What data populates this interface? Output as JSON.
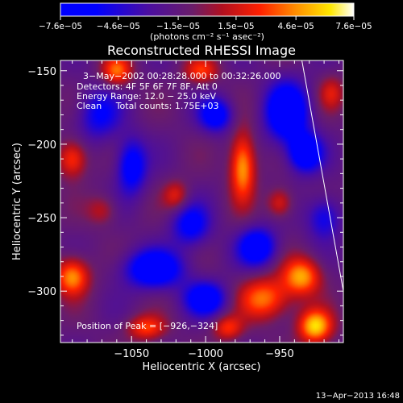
{
  "chart_data": {
    "type": "heatmap",
    "title": "Reconstructed RHESSI Image",
    "xlabel": "Heliocentric X (arcsec)",
    "ylabel": "Heliocentric Y (arcsec)",
    "xlim": [
      -1098,
      -907
    ],
    "ylim": [
      -335,
      -143
    ],
    "xticks": [
      -1050,
      -1000,
      -950
    ],
    "xtick_labels": [
      "−1050",
      "−1000",
      "−950"
    ],
    "yticks": [
      -150,
      -200,
      -250,
      -300
    ],
    "ytick_labels": [
      "−150",
      "−200",
      "−250",
      "−300"
    ],
    "colorbar": {
      "min": -7.6e-05,
      "max": 7.6e-05,
      "ticks": [
        -7.6e-05,
        -4.6e-05,
        -1.5e-05,
        1.5e-05,
        4.6e-05,
        7.6e-05
      ],
      "tick_labels": [
        "−7.6e−05",
        "−4.6e−05",
        "−1.5e−05",
        "1.5e−05",
        "4.6e−05",
        "7.6e−05"
      ],
      "units_label": "(photons cm⁻² s⁻¹ asec⁻²)"
    },
    "annotations": {
      "time_range": "3−May−2002 00:28:28.000 to 00:32:26.000",
      "detectors": "Detectors: 4F 5F 6F 7F 8F, Att 0",
      "energy": "Energy Range: 12.0 − 25.0 keV",
      "clean": "Clean     Total counts: 1.75E+03",
      "peak": "Position of Peak = [−926,−324]"
    },
    "limb_line": {
      "x": [
        -935,
        -907
      ],
      "y": [
        -143,
        -300
      ]
    },
    "blobs": [
      {
        "x": -945,
        "y": -178,
        "amp": -1,
        "sx": 10,
        "sy": 14
      },
      {
        "x": -933,
        "y": -206,
        "amp": -0.9,
        "sx": 8,
        "sy": 9
      },
      {
        "x": -965,
        "y": -270,
        "amp": -0.85,
        "sx": 9,
        "sy": 9
      },
      {
        "x": -1050,
        "y": -215,
        "amp": -0.75,
        "sx": 7,
        "sy": 13
      },
      {
        "x": -1035,
        "y": -285,
        "amp": -0.9,
        "sx": 14,
        "sy": 9
      },
      {
        "x": -1000,
        "y": -305,
        "amp": -0.8,
        "sx": 10,
        "sy": 8
      },
      {
        "x": -993,
        "y": -180,
        "amp": -0.75,
        "sx": 8,
        "sy": 8
      },
      {
        "x": -1010,
        "y": -255,
        "amp": -0.65,
        "sx": 9,
        "sy": 10
      },
      {
        "x": -1072,
        "y": -180,
        "amp": -0.55,
        "sx": 10,
        "sy": 12
      },
      {
        "x": -920,
        "y": -250,
        "amp": -0.55,
        "sx": 8,
        "sy": 10
      },
      {
        "x": -975,
        "y": -215,
        "amp": 0.9,
        "sx": 6,
        "sy": 16
      },
      {
        "x": -960,
        "y": -305,
        "amp": 0.75,
        "sx": 12,
        "sy": 10
      },
      {
        "x": -926,
        "y": -324,
        "amp": 1.0,
        "sx": 8,
        "sy": 8
      },
      {
        "x": -935,
        "y": -290,
        "amp": 0.85,
        "sx": 9,
        "sy": 9
      },
      {
        "x": -1090,
        "y": -290,
        "amp": 0.85,
        "sx": 8,
        "sy": 9
      },
      {
        "x": -1090,
        "y": -210,
        "amp": 0.65,
        "sx": 7,
        "sy": 9
      },
      {
        "x": -1060,
        "y": -150,
        "amp": 0.7,
        "sx": 7,
        "sy": 7
      },
      {
        "x": -1040,
        "y": -325,
        "amp": 0.6,
        "sx": 9,
        "sy": 6
      },
      {
        "x": -1003,
        "y": -150,
        "amp": 0.55,
        "sx": 8,
        "sy": 6
      },
      {
        "x": -950,
        "y": -240,
        "amp": 0.5,
        "sx": 6,
        "sy": 7
      },
      {
        "x": -1020,
        "y": -235,
        "amp": 0.45,
        "sx": 6,
        "sy": 7
      },
      {
        "x": -985,
        "y": -325,
        "amp": 0.55,
        "sx": 7,
        "sy": 6
      },
      {
        "x": -915,
        "y": -165,
        "amp": 0.4,
        "sx": 6,
        "sy": 8
      },
      {
        "x": -1070,
        "y": -245,
        "amp": 0.35,
        "sx": 7,
        "sy": 7
      }
    ],
    "base_level": -0.2
  },
  "footer": {
    "timestamp": "13−Apr−2013 16:48"
  }
}
